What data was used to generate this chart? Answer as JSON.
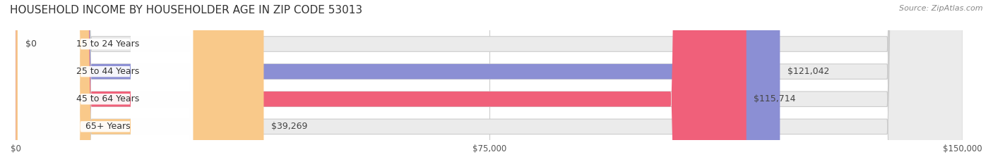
{
  "title": "HOUSEHOLD INCOME BY HOUSEHOLDER AGE IN ZIP CODE 53013",
  "source": "Source: ZipAtlas.com",
  "categories": [
    "15 to 24 Years",
    "25 to 44 Years",
    "45 to 64 Years",
    "65+ Years"
  ],
  "values": [
    0,
    121042,
    115714,
    39269
  ],
  "labels": [
    "$0",
    "$121,042",
    "$115,714",
    "$39,269"
  ],
  "bar_colors": [
    "#5ecec8",
    "#8b8fd4",
    "#f0607a",
    "#f9c98a"
  ],
  "bar_bg_color": "#f0f0f0",
  "background_color": "#ffffff",
  "xmax": 150000,
  "xticks": [
    0,
    75000,
    150000
  ],
  "xticklabels": [
    "$0",
    "$75,000",
    "$150,000"
  ],
  "title_fontsize": 11,
  "source_fontsize": 8,
  "label_fontsize": 9,
  "category_fontsize": 9,
  "bar_height": 0.55,
  "bar_bg_alpha": 0.25
}
